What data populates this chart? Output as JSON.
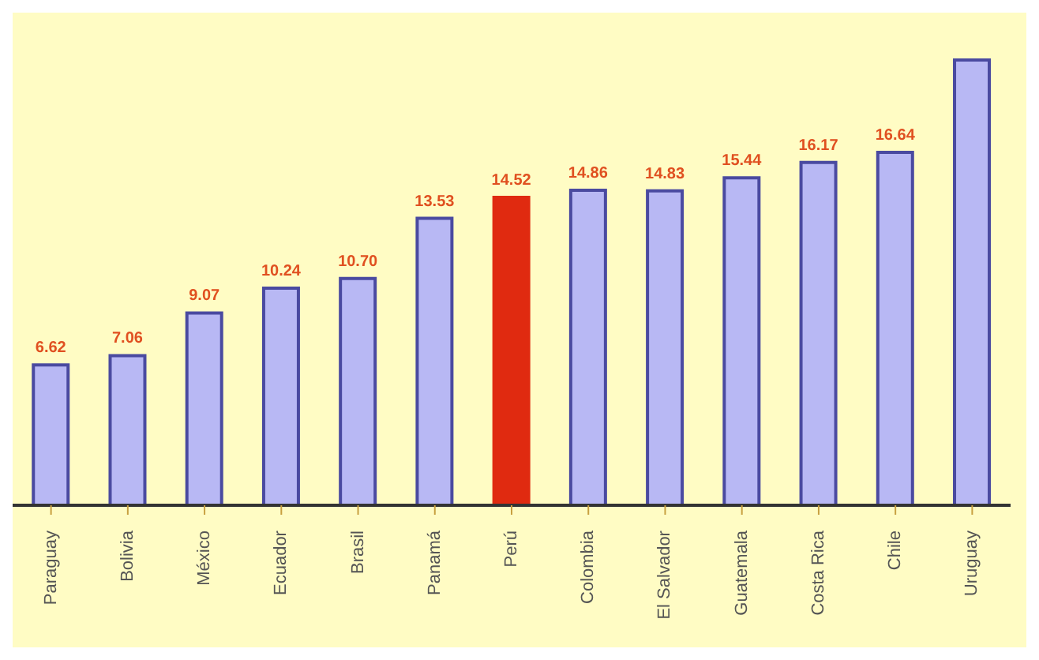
{
  "chart_data": {
    "type": "bar",
    "categories": [
      "Paraguay",
      "Bolivia",
      "México",
      "Ecuador",
      "Brasil",
      "Panamá",
      "Perú",
      "Colombia",
      "El Salvador",
      "Guatemala",
      "Costa Rica",
      "Chile",
      "Uruguay"
    ],
    "values": [
      6.62,
      7.06,
      9.07,
      10.24,
      10.7,
      13.53,
      14.52,
      14.86,
      14.83,
      15.44,
      16.17,
      16.64,
      21.0
    ],
    "value_labels": [
      "6.62",
      "7.06",
      "9.07",
      "10.24",
      "10.70",
      "13.53",
      "14.52",
      "14.86",
      "14.83",
      "15.44",
      "16.17",
      "16.64",
      null
    ],
    "colors": [
      "#b8b8f4",
      "#b8b8f4",
      "#b8b8f4",
      "#b8b8f4",
      "#b8b8f4",
      "#b8b8f4",
      "#e02a10",
      "#b8b8f4",
      "#b8b8f4",
      "#b8b8f4",
      "#b8b8f4",
      "#b8b8f4",
      "#b8b8f4"
    ],
    "grid": false,
    "legend": false
  }
}
